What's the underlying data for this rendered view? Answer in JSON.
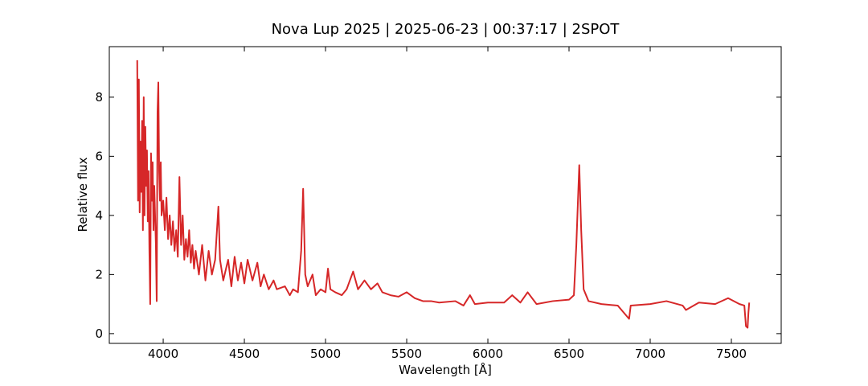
{
  "chart_data": {
    "type": "line",
    "title": "Nova Lup 2025 | 2025-06-23 | 00:37:17 | 2SPOT",
    "x_label": "Wavelength [Å]",
    "y_label": "Relative flux",
    "xlim": [
      3668,
      7807
    ],
    "ylim": [
      -0.33,
      9.71
    ],
    "xticks": [
      4000,
      4500,
      5000,
      5500,
      6000,
      6500,
      7000,
      7500
    ],
    "yticks": [
      0,
      2,
      4,
      6,
      8
    ],
    "x": [
      3840,
      3845,
      3850,
      3855,
      3860,
      3865,
      3870,
      3875,
      3880,
      3885,
      3890,
      3895,
      3900,
      3905,
      3910,
      3915,
      3920,
      3925,
      3930,
      3935,
      3940,
      3945,
      3955,
      3960,
      3965,
      3970,
      3975,
      3980,
      3985,
      3990,
      4000,
      4010,
      4020,
      4030,
      4040,
      4050,
      4060,
      4070,
      4080,
      4090,
      4100,
      4110,
      4120,
      4130,
      4140,
      4150,
      4160,
      4170,
      4180,
      4190,
      4200,
      4220,
      4240,
      4260,
      4280,
      4300,
      4320,
      4340,
      4350,
      4370,
      4400,
      4420,
      4440,
      4460,
      4480,
      4500,
      4520,
      4550,
      4580,
      4600,
      4620,
      4650,
      4680,
      4700,
      4750,
      4780,
      4800,
      4830,
      4850,
      4862,
      4875,
      4890,
      4920,
      4940,
      4970,
      5000,
      5015,
      5030,
      5060,
      5100,
      5130,
      5170,
      5200,
      5240,
      5280,
      5320,
      5350,
      5400,
      5450,
      5500,
      5550,
      5600,
      5650,
      5700,
      5800,
      5850,
      5890,
      5920,
      6000,
      6100,
      6150,
      6200,
      6245,
      6300,
      6400,
      6500,
      6530,
      6545,
      6555,
      6563,
      6575,
      6590,
      6620,
      6700,
      6800,
      6870,
      6880,
      7000,
      7100,
      7200,
      7220,
      7300,
      7400,
      7480,
      7550,
      7580,
      7590,
      7600,
      7605,
      7610
    ],
    "series": [
      {
        "color": "#d62728",
        "values": [
          9.25,
          4.5,
          8.6,
          4.1,
          6.5,
          4.8,
          7.2,
          3.5,
          8.0,
          4.0,
          7.0,
          5.0,
          6.2,
          3.8,
          5.5,
          2.8,
          1.0,
          6.1,
          4.5,
          5.8,
          3.5,
          5.0,
          3.0,
          1.1,
          7.5,
          8.5,
          5.5,
          4.5,
          5.8,
          4.0,
          4.5,
          3.5,
          4.6,
          3.2,
          4.0,
          3.0,
          3.8,
          2.8,
          3.5,
          2.6,
          5.3,
          3.0,
          4.0,
          2.5,
          3.2,
          2.6,
          3.5,
          2.4,
          3.0,
          2.2,
          2.8,
          2.0,
          3.0,
          1.8,
          2.8,
          2.0,
          2.5,
          4.3,
          2.5,
          1.8,
          2.5,
          1.6,
          2.6,
          1.8,
          2.4,
          1.7,
          2.5,
          1.8,
          2.4,
          1.6,
          2.0,
          1.5,
          1.8,
          1.5,
          1.6,
          1.3,
          1.5,
          1.4,
          2.8,
          4.9,
          2.0,
          1.6,
          2.0,
          1.3,
          1.5,
          1.4,
          2.2,
          1.5,
          1.4,
          1.3,
          1.5,
          2.1,
          1.5,
          1.8,
          1.5,
          1.7,
          1.4,
          1.3,
          1.25,
          1.4,
          1.2,
          1.1,
          1.1,
          1.05,
          1.1,
          0.95,
          1.3,
          1.0,
          1.05,
          1.05,
          1.3,
          1.05,
          1.4,
          1.0,
          1.1,
          1.15,
          1.3,
          3.0,
          4.5,
          5.7,
          3.5,
          1.5,
          1.1,
          1.0,
          0.95,
          0.5,
          0.95,
          1.0,
          1.1,
          0.95,
          0.8,
          1.05,
          1.0,
          1.2,
          1.0,
          0.95,
          0.25,
          0.2,
          0.7,
          1.05
        ]
      }
    ]
  }
}
